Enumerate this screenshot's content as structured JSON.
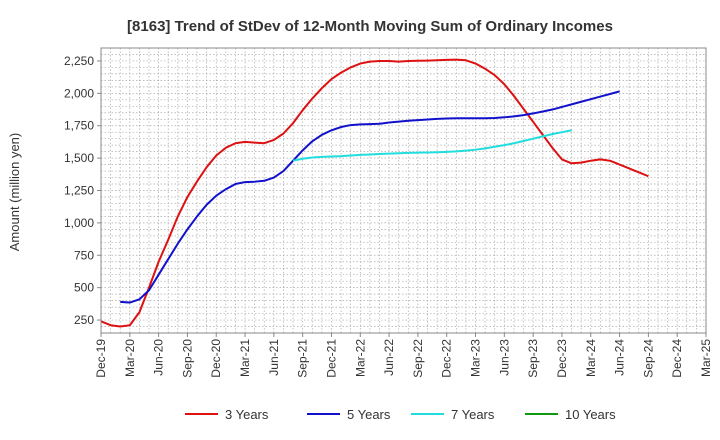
{
  "chart_data": {
    "type": "line",
    "title": "[8163]  Trend of StDev of 12-Month Moving Sum of Ordinary Incomes",
    "ylabel": "Amount (million yen)",
    "xlabel": "",
    "ylim": [
      150,
      2350
    ],
    "yticks": [
      250,
      500,
      750,
      1000,
      1250,
      1500,
      1750,
      2000,
      2250
    ],
    "ytick_labels": [
      "250",
      "500",
      "750",
      "1,000",
      "1,250",
      "1,500",
      "1,750",
      "2,000",
      "2,250"
    ],
    "xtick_labels": [
      "Dec-19",
      "Mar-20",
      "Jun-20",
      "Sep-20",
      "Dec-20",
      "Mar-21",
      "Jun-21",
      "Sep-21",
      "Dec-21",
      "Mar-22",
      "Jun-22",
      "Sep-22",
      "Dec-22",
      "Mar-23",
      "Jun-23",
      "Sep-23",
      "Dec-23",
      "Mar-24",
      "Jun-24",
      "Sep-24",
      "Dec-24",
      "Mar-25"
    ],
    "grid": true,
    "legend_position": "bottom",
    "series": [
      {
        "name": "3 Years",
        "color": "#dd1111",
        "start": 0,
        "values": [
          240,
          210,
          200,
          210,
          310,
          500,
          700,
          870,
          1050,
          1200,
          1320,
          1430,
          1520,
          1580,
          1615,
          1625,
          1620,
          1615,
          1640,
          1690,
          1770,
          1870,
          1960,
          2040,
          2110,
          2160,
          2200,
          2230,
          2245,
          2250,
          2250,
          2245,
          2250,
          2252,
          2253,
          2255,
          2258,
          2260,
          2255,
          2230,
          2190,
          2140,
          2070,
          1980,
          1880,
          1780,
          1680,
          1580,
          1490,
          1460,
          1465,
          1480,
          1490,
          1480,
          1450,
          1420,
          1390,
          1360
        ]
      },
      {
        "name": "5 Years",
        "color": "#1111cc",
        "start": 2,
        "values": [
          390,
          385,
          410,
          480,
          600,
          720,
          840,
          950,
          1050,
          1140,
          1210,
          1260,
          1300,
          1315,
          1318,
          1325,
          1350,
          1400,
          1480,
          1560,
          1630,
          1680,
          1715,
          1740,
          1755,
          1760,
          1762,
          1765,
          1775,
          1782,
          1788,
          1793,
          1798,
          1803,
          1806,
          1808,
          1808,
          1808,
          1808,
          1810,
          1815,
          1822,
          1832,
          1845,
          1860,
          1875,
          1895,
          1915,
          1935,
          1955,
          1975,
          1995,
          2015
        ]
      },
      {
        "name": "7 Years",
        "color": "#22dddd",
        "start": 20,
        "values": [
          1480,
          1495,
          1505,
          1510,
          1512,
          1515,
          1520,
          1525,
          1528,
          1532,
          1535,
          1538,
          1540,
          1542,
          1543,
          1545,
          1548,
          1552,
          1558,
          1565,
          1575,
          1588,
          1600,
          1615,
          1632,
          1650,
          1668,
          1685,
          1700,
          1715
        ]
      },
      {
        "name": "10 Years",
        "color": "#119911",
        "start": 0,
        "values": []
      }
    ]
  }
}
